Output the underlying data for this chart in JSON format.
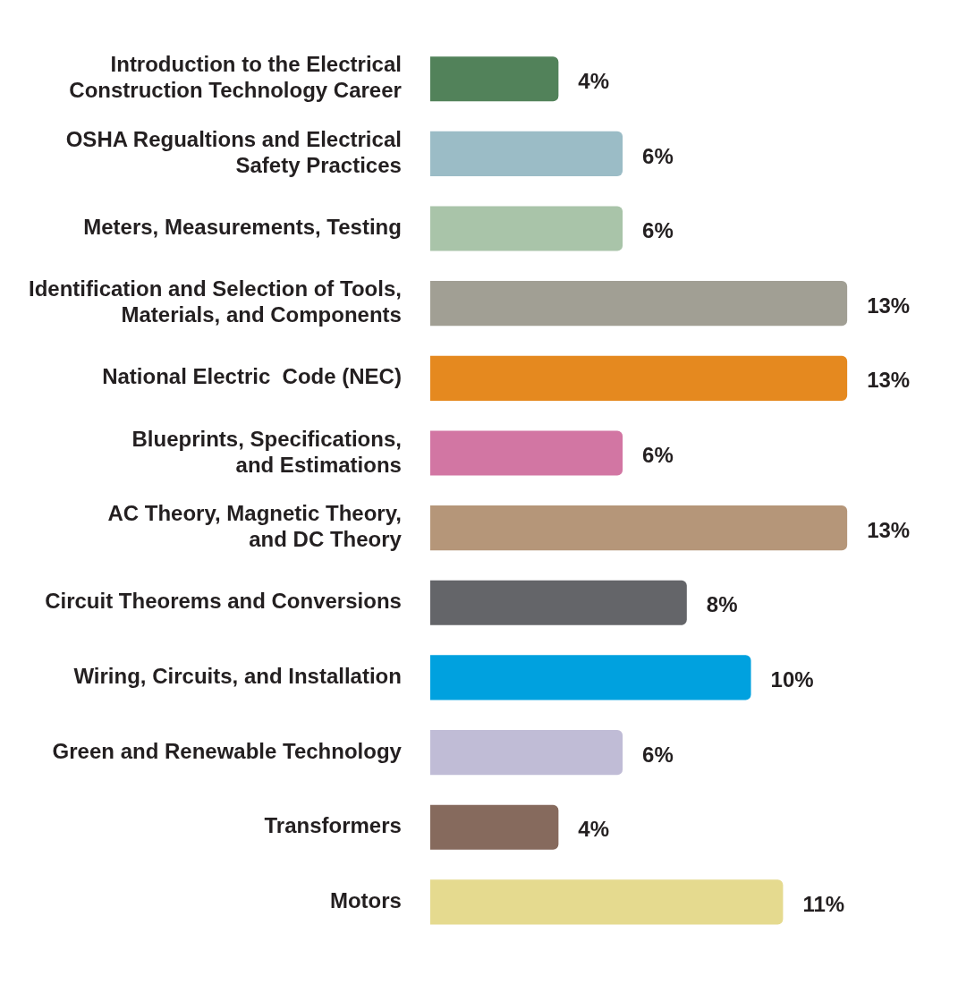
{
  "chart_data": {
    "type": "bar",
    "orientation": "horizontal",
    "categories": [
      "Introduction to the Electrical Construction Technology Career",
      "OSHA Regualtions and Electrical Safety Practices",
      "Meters, Measurements, Testing",
      "Identification and Selection of Tools, Materials, and Components",
      "National Electric  Code (NEC)",
      "Blueprints, Specifications, and Estimations",
      "AC Theory, Magnetic Theory, and DC Theory",
      "Circuit Theorems and Conversions",
      "Wiring, Circuits, and Installation",
      "Green and Renewable Technology",
      "Transformers",
      "Motors"
    ],
    "values": [
      4,
      6,
      6,
      13,
      13,
      6,
      13,
      8,
      10,
      6,
      4,
      11
    ],
    "value_labels": [
      "4%",
      "6%",
      "6%",
      "13%",
      "13%",
      "6%",
      "13%",
      "8%",
      "10%",
      "6%",
      "4%",
      "11%"
    ],
    "colors": [
      "#52825a",
      "#9bbcc6",
      "#a9c4a9",
      "#a19f94",
      "#e5891f",
      "#d276a3",
      "#b59679",
      "#646569",
      "#00a1df",
      "#c0bcd6",
      "#866a5d",
      "#e5da8f"
    ],
    "legend": false
  }
}
